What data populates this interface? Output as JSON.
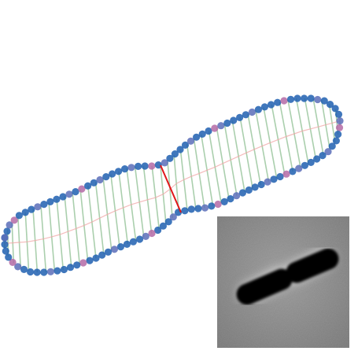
{
  "figure": {
    "description_hidden": "",
    "colors": {
      "contour_point": "#1f5fb0",
      "contour_point_alt": "#5a6db8",
      "contour_point_magenta": "#b46aa6",
      "rung_line": "#9cc79f",
      "midline": "#f0a5a5",
      "division_line": "#e0161a",
      "inset_background": "#8a8a8a",
      "inset_cell": "#050505",
      "inset_halo": "#d8d8d8"
    },
    "icons": {
      "contour": "cell-outline-contour-points",
      "division": "division-site-line",
      "inset": "phase-contrast-micrograph"
    }
  }
}
